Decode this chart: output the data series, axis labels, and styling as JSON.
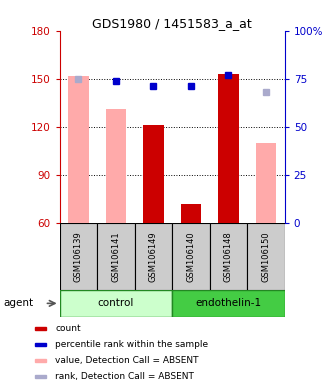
{
  "title": "GDS1980 / 1451583_a_at",
  "samples": [
    "GSM106139",
    "GSM106141",
    "GSM106149",
    "GSM106140",
    "GSM106148",
    "GSM106150"
  ],
  "groups": [
    {
      "label": "control",
      "color": "#ccffcc",
      "border": "#228822",
      "samples": [
        0,
        1,
        2
      ]
    },
    {
      "label": "endothelin-1",
      "color": "#44cc44",
      "border": "#228822",
      "samples": [
        3,
        4,
        5
      ]
    }
  ],
  "bar_width": 0.55,
  "ylim_left": [
    60,
    180
  ],
  "ylim_right": [
    0,
    100
  ],
  "yticks_left": [
    60,
    90,
    120,
    150,
    180
  ],
  "yticks_right": [
    0,
    25,
    50,
    75,
    100
  ],
  "yticklabels_right": [
    "0",
    "25",
    "50",
    "75",
    "100%"
  ],
  "red_bars": [
    null,
    null,
    121,
    72,
    153,
    null
  ],
  "pink_bars": [
    152,
    131,
    null,
    null,
    null,
    110
  ],
  "blue_squares_right": [
    null,
    74,
    71,
    71,
    77,
    null
  ],
  "lightblue_squares_right": [
    75,
    null,
    null,
    null,
    null,
    68
  ],
  "legend": [
    {
      "color": "#cc0000",
      "label": "count"
    },
    {
      "color": "#0000cc",
      "label": "percentile rank within the sample"
    },
    {
      "color": "#ffaaaa",
      "label": "value, Detection Call = ABSENT"
    },
    {
      "color": "#aaaacc",
      "label": "rank, Detection Call = ABSENT"
    }
  ],
  "left_axis_color": "#cc0000",
  "right_axis_color": "#0000cc"
}
